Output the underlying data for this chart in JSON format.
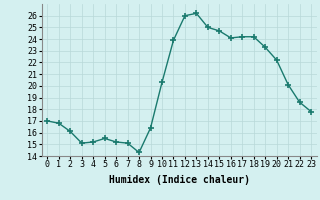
{
  "x": [
    0,
    1,
    2,
    3,
    4,
    5,
    6,
    7,
    8,
    9,
    10,
    11,
    12,
    13,
    14,
    15,
    16,
    17,
    18,
    19,
    20,
    21,
    22,
    23
  ],
  "y": [
    17.0,
    16.8,
    16.1,
    15.1,
    15.2,
    15.5,
    15.2,
    15.1,
    14.3,
    16.4,
    20.3,
    23.9,
    26.0,
    26.2,
    25.0,
    24.7,
    24.1,
    24.2,
    24.2,
    23.3,
    22.2,
    20.1,
    18.6,
    17.8
  ],
  "line_color": "#1a7a6e",
  "marker": "+",
  "marker_size": 4,
  "bg_color": "#d4f0f0",
  "grid_color": "#b8d8d8",
  "xlabel": "Humidex (Indice chaleur)",
  "xlim": [
    -0.5,
    23.5
  ],
  "ylim": [
    14,
    27
  ],
  "yticks": [
    14,
    15,
    16,
    17,
    18,
    19,
    20,
    21,
    22,
    23,
    24,
    25,
    26
  ],
  "xticks": [
    0,
    1,
    2,
    3,
    4,
    5,
    6,
    7,
    8,
    9,
    10,
    11,
    12,
    13,
    14,
    15,
    16,
    17,
    18,
    19,
    20,
    21,
    22,
    23
  ],
  "xlabel_fontsize": 7,
  "tick_fontsize": 6,
  "line_width": 1.0,
  "marker_linewidth": 1.2
}
